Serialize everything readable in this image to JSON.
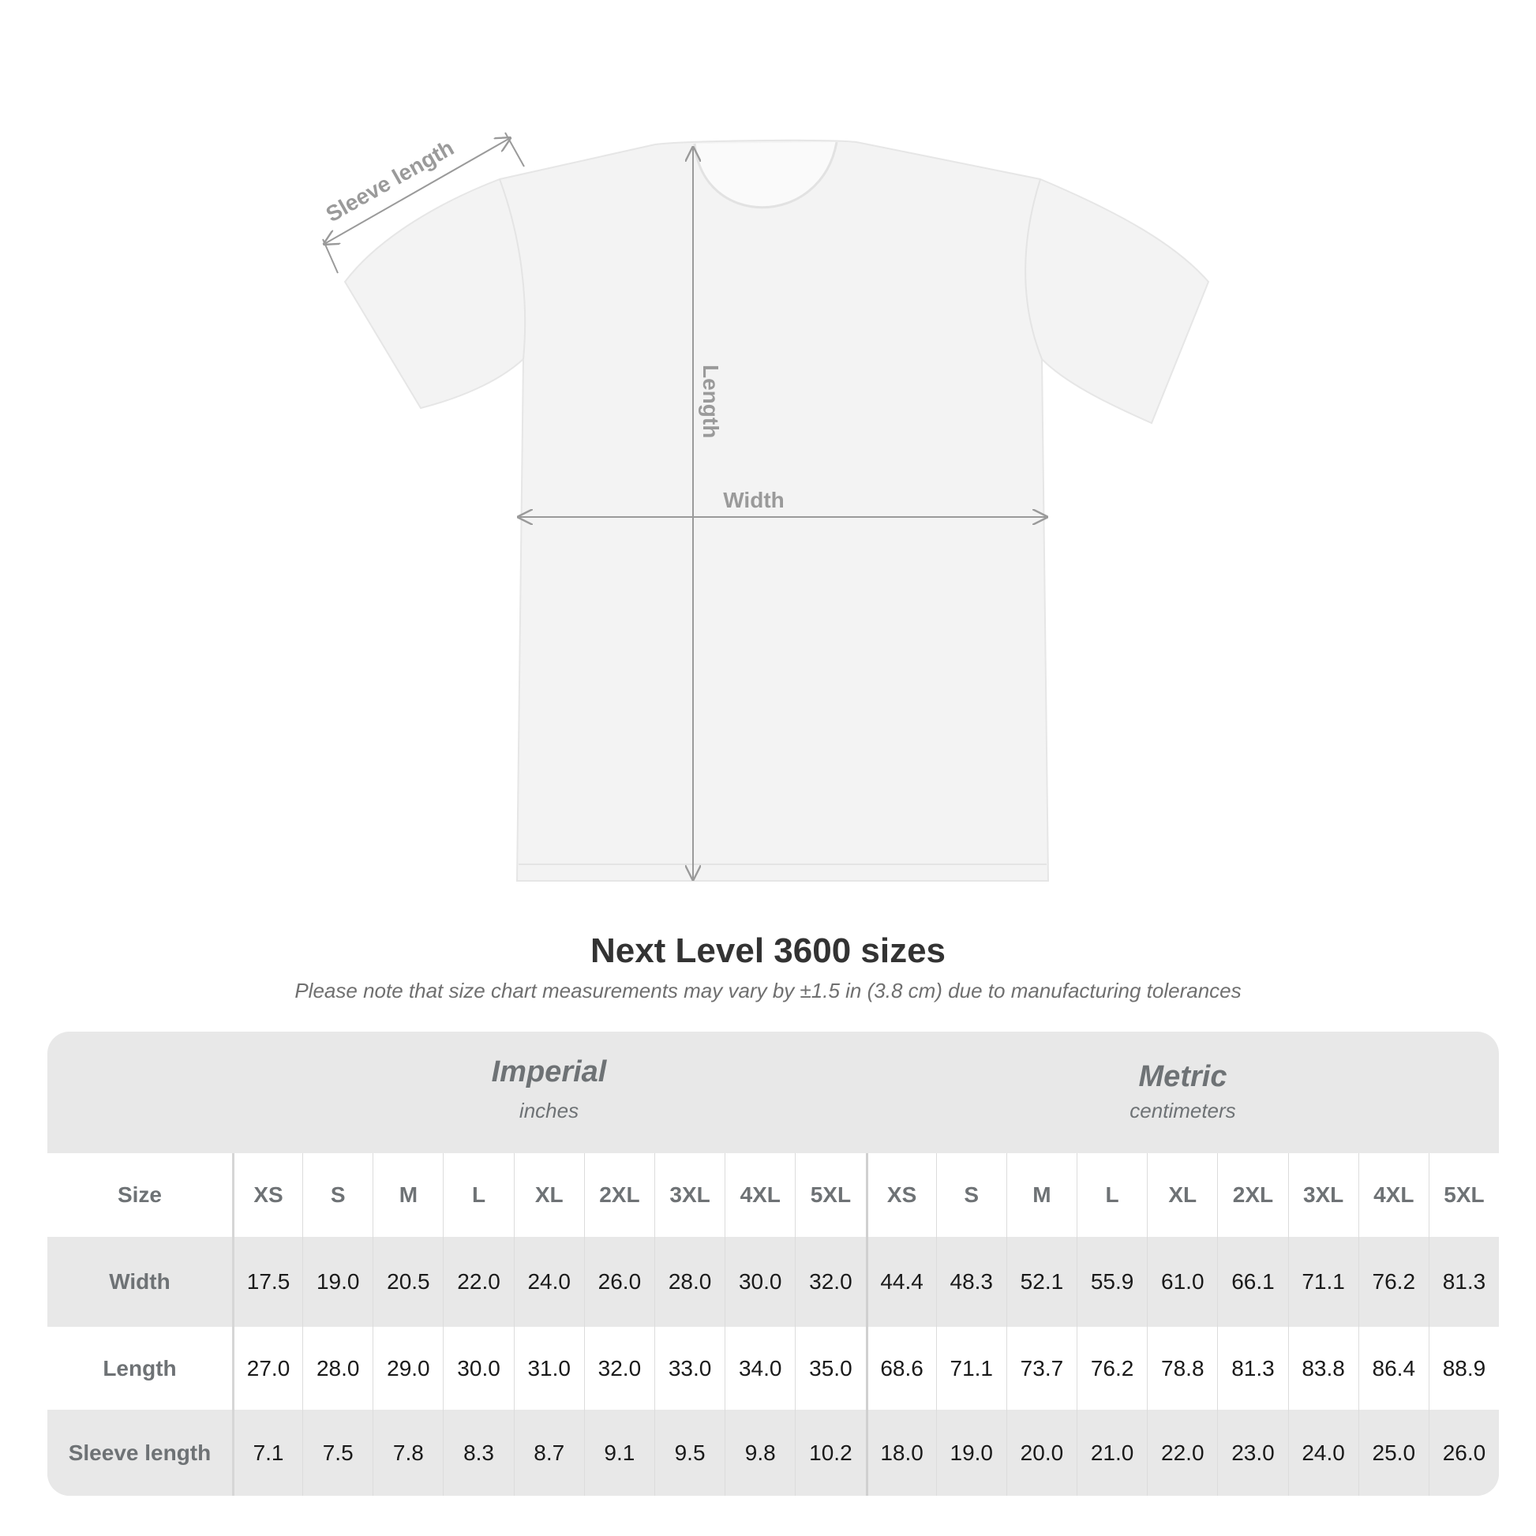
{
  "diagram": {
    "labels": {
      "sleeve": "Sleeve length",
      "length": "Length",
      "width": "Width"
    },
    "colors": {
      "shirt": "#f3f3f3",
      "annotation": "#9a9a9a"
    }
  },
  "title": "Next Level 3600 sizes",
  "note": "Please note that size chart measurements may vary by ±1.5 in (3.8 cm) due to manufacturing tolerances",
  "table": {
    "imperial": {
      "label": "Imperial",
      "unit": "inches"
    },
    "metric": {
      "label": "Metric",
      "unit": "centimeters"
    },
    "size_label": "Size",
    "sizes": [
      "XS",
      "S",
      "M",
      "L",
      "XL",
      "2XL",
      "3XL",
      "4XL",
      "5XL",
      "XS",
      "S",
      "M",
      "L",
      "XL",
      "2XL",
      "3XL",
      "4XL",
      "5XL"
    ],
    "rows": [
      {
        "label": "Width",
        "values": [
          "17.5",
          "19.0",
          "20.5",
          "22.0",
          "24.0",
          "26.0",
          "28.0",
          "30.0",
          "32.0",
          "44.4",
          "48.3",
          "52.1",
          "55.9",
          "61.0",
          "66.1",
          "71.1",
          "76.2",
          "81.3"
        ]
      },
      {
        "label": "Length",
        "values": [
          "27.0",
          "28.0",
          "29.0",
          "30.0",
          "31.0",
          "32.0",
          "33.0",
          "34.0",
          "35.0",
          "68.6",
          "71.1",
          "73.7",
          "76.2",
          "78.8",
          "81.3",
          "83.8",
          "86.4",
          "88.9"
        ]
      },
      {
        "label": "Sleeve length",
        "values": [
          "7.1",
          "7.5",
          "7.8",
          "8.3",
          "8.7",
          "9.1",
          "9.5",
          "9.8",
          "10.2",
          "18.0",
          "19.0",
          "20.0",
          "21.0",
          "22.0",
          "23.0",
          "24.0",
          "25.0",
          "26.0"
        ]
      }
    ]
  }
}
